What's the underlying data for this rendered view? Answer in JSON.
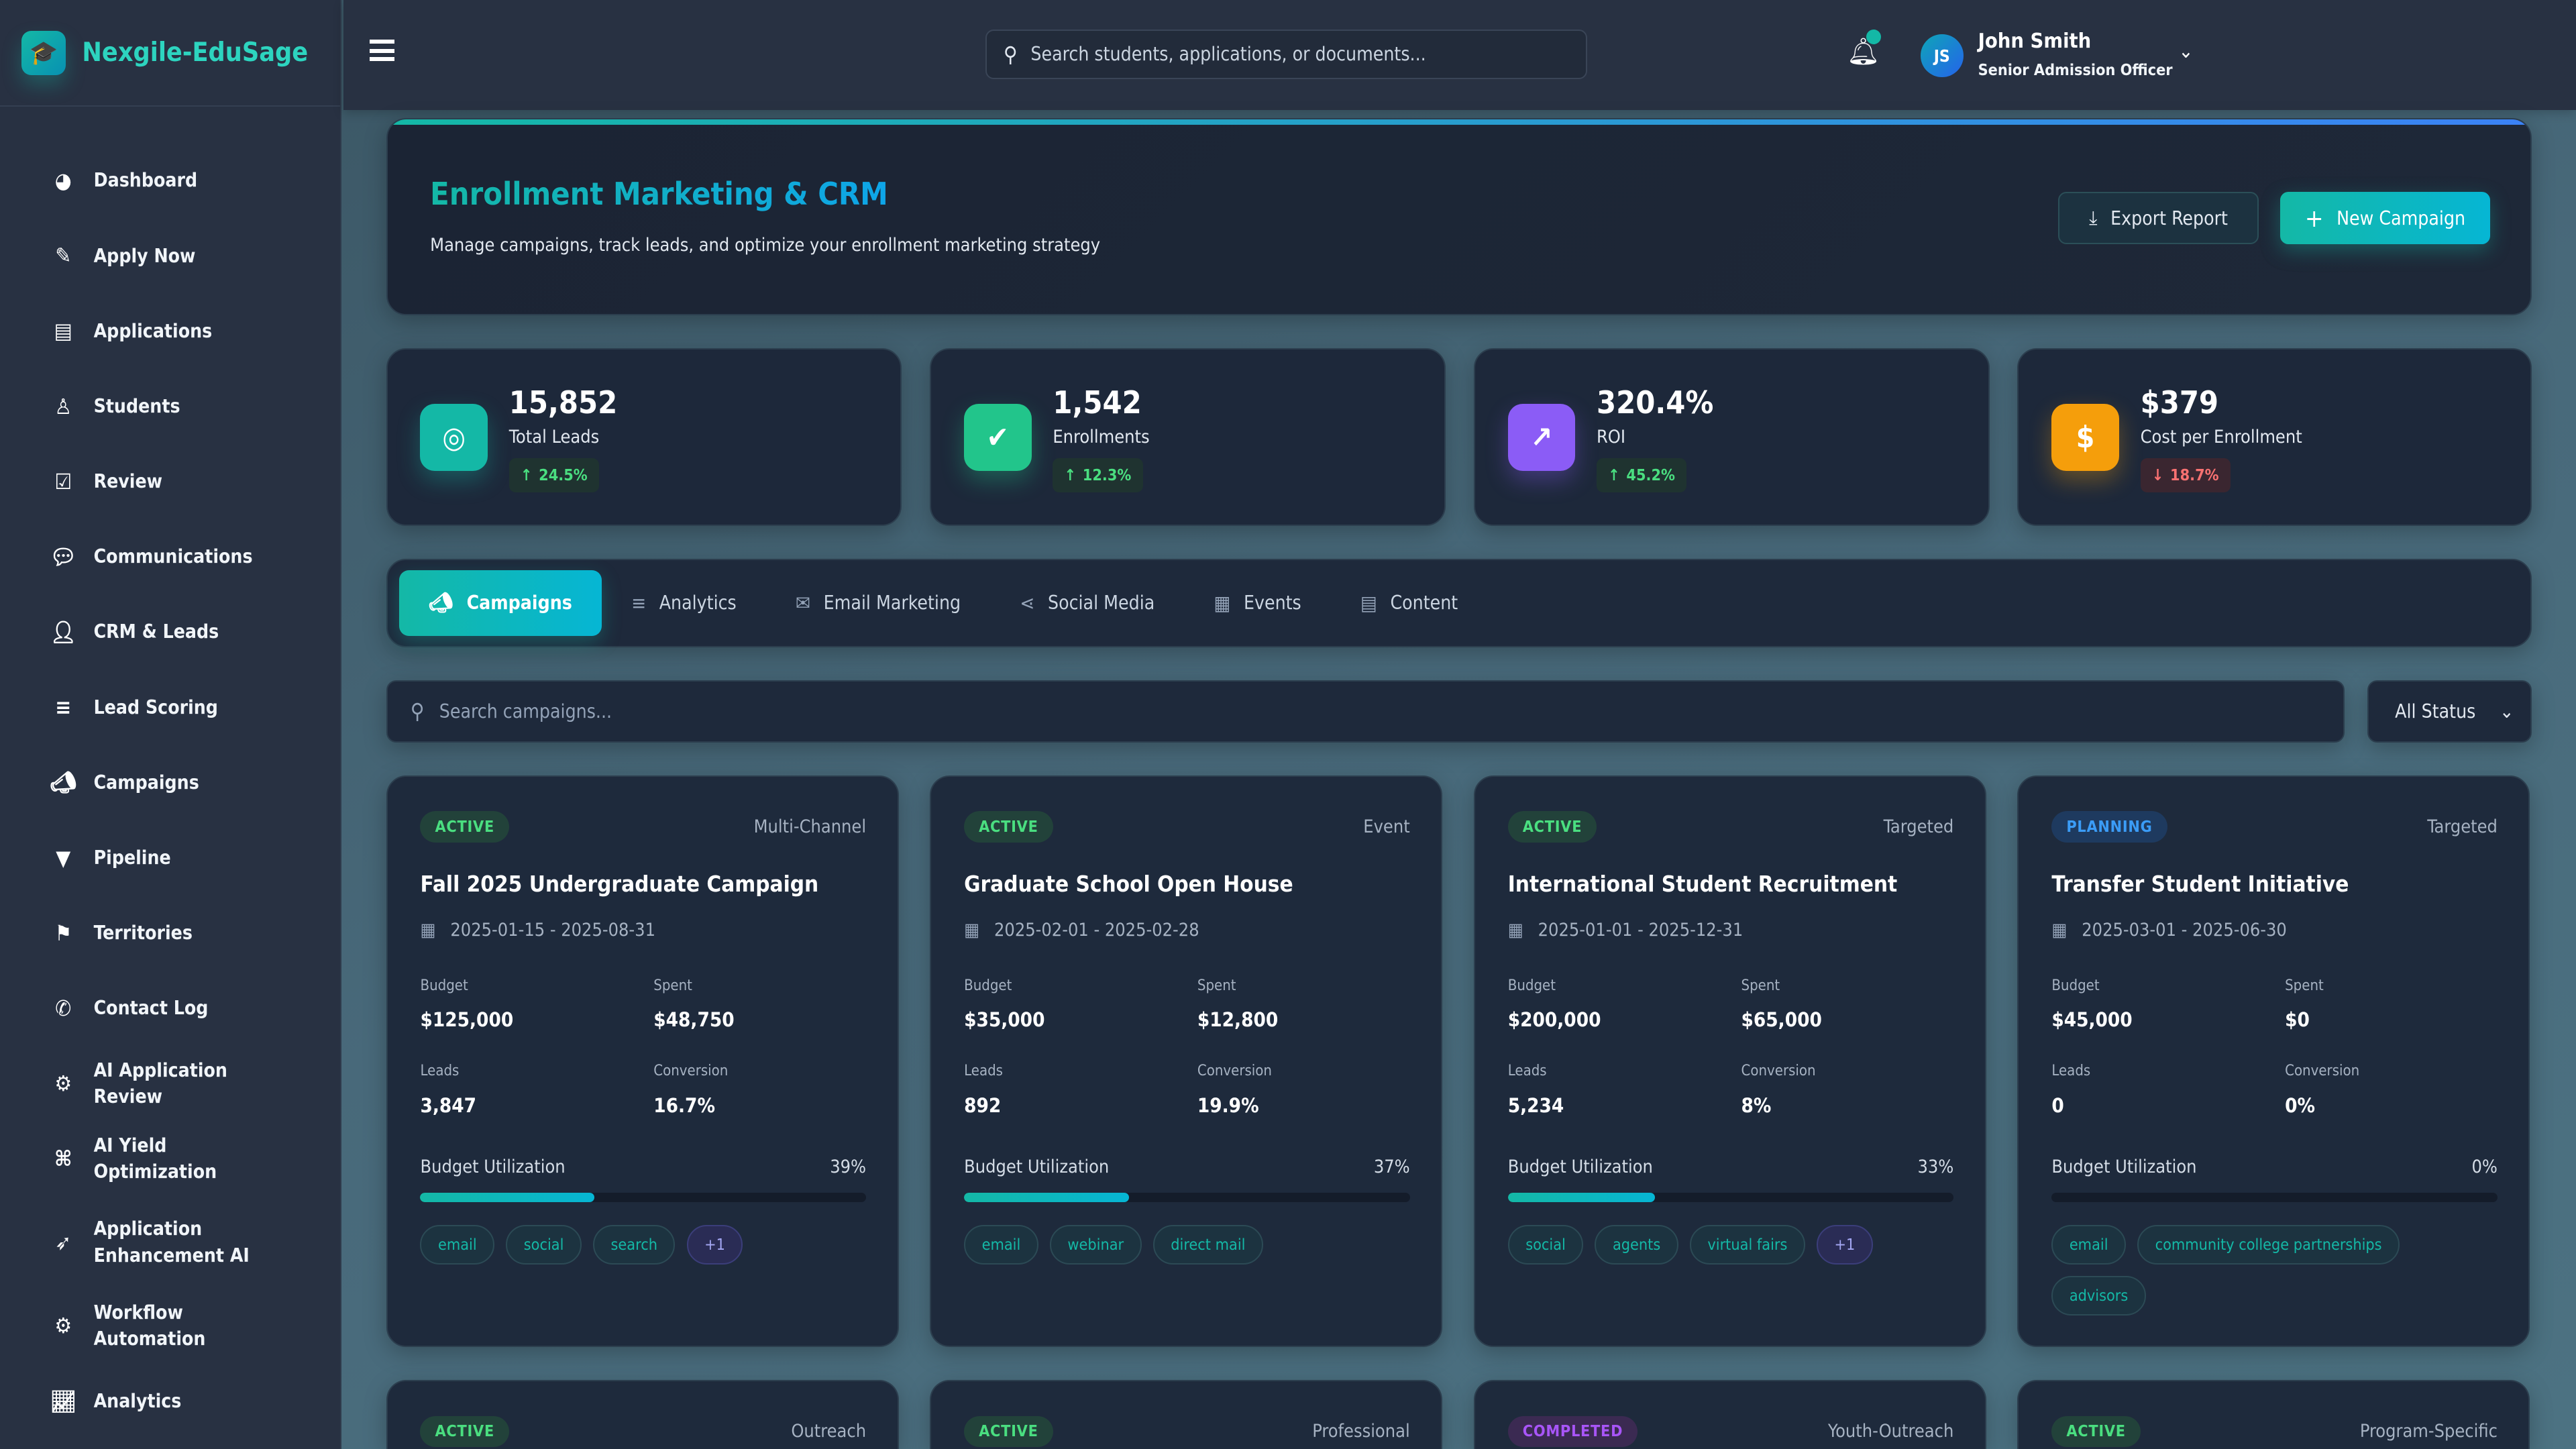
{
  "app": {
    "name": "Nexgile-EduSage"
  },
  "sidebar": {
    "items": [
      {
        "label": "Dashboard",
        "icon": "palette-icon"
      },
      {
        "label": "Apply Now",
        "icon": "edit-icon"
      },
      {
        "label": "Applications",
        "icon": "file-icon"
      },
      {
        "label": "Students",
        "icon": "student-icon"
      },
      {
        "label": "Review",
        "icon": "clipboard-check-icon"
      },
      {
        "label": "Communications",
        "icon": "comments-icon"
      },
      {
        "label": "CRM & Leads",
        "icon": "user-plus-icon"
      },
      {
        "label": "Lead Scoring",
        "icon": "bar-chart-icon"
      },
      {
        "label": "Campaigns",
        "icon": "megaphone-icon"
      },
      {
        "label": "Pipeline",
        "icon": "filter-icon"
      },
      {
        "label": "Territories",
        "icon": "map-icon"
      },
      {
        "label": "Contact Log",
        "icon": "phone-icon"
      },
      {
        "label": "AI Application Review",
        "icon": "robot-icon"
      },
      {
        "label": "AI Yield Optimization",
        "icon": "sitemap-icon"
      },
      {
        "label": "Application Enhancement AI",
        "icon": "rocket-icon"
      },
      {
        "label": "Workflow Automation",
        "icon": "robot-icon"
      },
      {
        "label": "Analytics",
        "icon": "line-chart-icon"
      }
    ]
  },
  "topbar": {
    "search_placeholder": "Search students, applications, or documents...",
    "user": {
      "initials": "JS",
      "name": "John Smith",
      "role": "Senior Admission Officer"
    }
  },
  "header": {
    "title": "Enrollment Marketing & CRM",
    "subtitle": "Manage campaigns, track leads, and optimize your enrollment marketing strategy",
    "export_label": "Export Report",
    "new_label": "New Campaign"
  },
  "stats": [
    {
      "value": "15,852",
      "label": "Total Leads",
      "trend": "24.5%",
      "dir": "up",
      "icon": "target-icon",
      "color": "#14b8a6"
    },
    {
      "value": "1,542",
      "label": "Enrollments",
      "trend": "12.3%",
      "dir": "up",
      "icon": "user-check-icon",
      "color": "#22c58b"
    },
    {
      "value": "320.4%",
      "label": "ROI",
      "trend": "45.2%",
      "dir": "up",
      "icon": "chart-line-icon",
      "color": "#8b5cf6"
    },
    {
      "value": "$379",
      "label": "Cost per Enrollment",
      "trend": "18.7%",
      "dir": "down",
      "icon": "dollar-icon",
      "color": "#f59e0b"
    }
  ],
  "tabs": [
    {
      "label": "Campaigns",
      "icon": "megaphone-icon",
      "active": true
    },
    {
      "label": "Analytics",
      "icon": "bar-chart-icon"
    },
    {
      "label": "Email Marketing",
      "icon": "envelope-icon"
    },
    {
      "label": "Social Media",
      "icon": "share-icon"
    },
    {
      "label": "Events",
      "icon": "calendar-icon"
    },
    {
      "label": "Content",
      "icon": "file-icon"
    }
  ],
  "filters": {
    "search_placeholder": "Search campaigns...",
    "status": "All Status"
  },
  "labels": {
    "budget": "Budget",
    "spent": "Spent",
    "leads": "Leads",
    "conversion": "Conversion",
    "utilization": "Budget Utilization"
  },
  "campaigns": [
    {
      "status": "ACTIVE",
      "type": "Multi-Channel",
      "title": "Fall 2025 Undergraduate Campaign",
      "dates": "2025-01-15 - 2025-08-31",
      "budget": "$125,000",
      "spent": "$48,750",
      "leads": "3,847",
      "conversion": "16.7%",
      "utilization": "39%",
      "util_value": 39,
      "tags": [
        "email",
        "social",
        "search",
        "+1"
      ]
    },
    {
      "status": "ACTIVE",
      "type": "Event",
      "title": "Graduate School Open House",
      "dates": "2025-02-01 - 2025-02-28",
      "budget": "$35,000",
      "spent": "$12,800",
      "leads": "892",
      "conversion": "19.9%",
      "utilization": "37%",
      "util_value": 37,
      "tags": [
        "email",
        "webinar",
        "direct mail"
      ]
    },
    {
      "status": "ACTIVE",
      "type": "Targeted",
      "title": "International Student Recruitment",
      "dates": "2025-01-01 - 2025-12-31",
      "budget": "$200,000",
      "spent": "$65,000",
      "leads": "5,234",
      "conversion": "8%",
      "utilization": "33%",
      "util_value": 33,
      "tags": [
        "social",
        "agents",
        "virtual fairs",
        "+1"
      ]
    },
    {
      "status": "PLANNING",
      "type": "Targeted",
      "title": "Transfer Student Initiative",
      "dates": "2025-03-01 - 2025-06-30",
      "budget": "$45,000",
      "spent": "$0",
      "leads": "0",
      "conversion": "0%",
      "utilization": "0%",
      "util_value": 0,
      "tags": [
        "email",
        "community college partnerships",
        "advisors"
      ]
    },
    {
      "status": "ACTIVE",
      "type": "Outreach"
    },
    {
      "status": "ACTIVE",
      "type": "Professional"
    },
    {
      "status": "COMPLETED",
      "type": "Youth-Outreach"
    },
    {
      "status": "ACTIVE",
      "type": "Program-Specific"
    }
  ]
}
